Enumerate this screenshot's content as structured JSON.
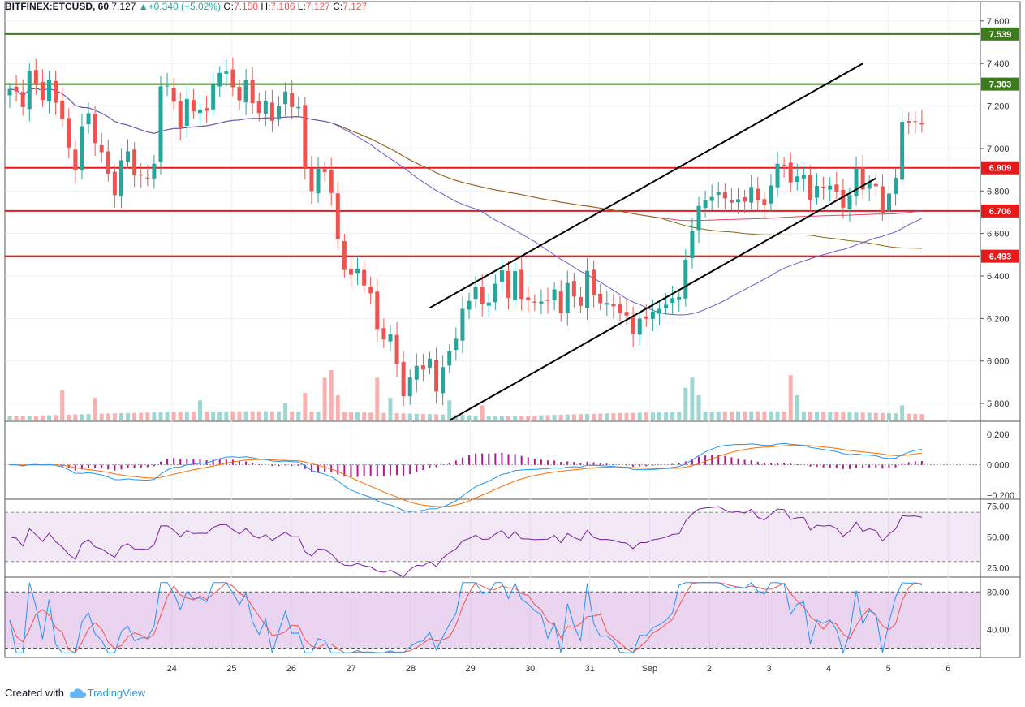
{
  "header": {
    "symbol": "BITFINEX:ETCUSD, 60",
    "last": "7.127",
    "change_arrow": "▲",
    "change": "+0.340 (+5.02%)",
    "o_label": "O:",
    "o": "7.150",
    "h_label": "H:",
    "h": "7.186",
    "l_label": "L:",
    "l": "7.127",
    "c_label": "C:",
    "c": "7.127"
  },
  "footer": {
    "created_with": "Created with",
    "brand": "TradingView"
  },
  "colors": {
    "up": "#26a69a",
    "down": "#ef5350",
    "support": "#e8191b",
    "resistance": "#3c7a1c",
    "ma_fast": "#6a5acd",
    "ma_mid": "#8b6914",
    "ma_slow": "#e8426e",
    "macd": "#2196f3",
    "signal": "#ff6d00",
    "hist": "#b2178e",
    "rsi": "#7b1fa2",
    "stoch_k": "#2196f3",
    "stoch_d": "#ef5350"
  },
  "chart_data": {
    "type": "candlestick",
    "y_ticks": [
      "7.600",
      "7.400",
      "7.200",
      "7.000",
      "6.800",
      "6.600",
      "6.400",
      "6.200",
      "6.000",
      "5.800"
    ],
    "ylim": [
      5.72,
      7.63
    ],
    "x_ticks": [
      "24",
      "25",
      "26",
      "27",
      "28",
      "29",
      "30",
      "31",
      "Sep",
      "2",
      "3",
      "4",
      "5",
      "6"
    ],
    "x_tick_index": [
      24.7,
      33.8,
      42.9,
      52.0,
      61.1,
      70.2,
      79.3,
      88.4,
      97.5,
      106.6,
      115.7,
      124.8,
      133.9,
      143.0
    ],
    "price_levels": [
      {
        "label": "7.539",
        "value": 7.539,
        "kind": "resistance"
      },
      {
        "label": "7.303",
        "value": 7.303,
        "kind": "resistance"
      },
      {
        "label": "6.909",
        "value": 6.909,
        "kind": "support"
      },
      {
        "label": "6.706",
        "value": 6.706,
        "kind": "support"
      },
      {
        "label": "6.493",
        "value": 6.493,
        "kind": "support"
      }
    ],
    "channel_lines": [
      {
        "from": [
          64,
          6.25
        ],
        "to": [
          130,
          7.4
        ]
      },
      {
        "from": [
          67,
          5.72
        ],
        "to": [
          132,
          6.86
        ]
      }
    ],
    "close_anchors": [
      [
        0,
        7.28
      ],
      [
        2,
        7.22
      ],
      [
        3,
        7.35
      ],
      [
        5,
        7.25
      ],
      [
        6,
        7.3
      ],
      [
        8,
        7.15
      ],
      [
        9,
        6.98
      ],
      [
        10,
        6.92
      ],
      [
        11,
        7.1
      ],
      [
        12,
        7.15
      ],
      [
        13,
        7.05
      ],
      [
        15,
        6.88
      ],
      [
        16,
        6.8
      ],
      [
        17,
        6.92
      ],
      [
        18,
        7.0
      ],
      [
        19,
        6.88
      ],
      [
        20,
        6.85
      ],
      [
        22,
        6.92
      ],
      [
        23,
        7.28
      ],
      [
        24,
        7.32
      ],
      [
        25,
        7.2
      ],
      [
        26,
        7.1
      ],
      [
        27,
        7.25
      ],
      [
        28,
        7.15
      ],
      [
        29,
        7.2
      ],
      [
        30,
        7.18
      ],
      [
        31,
        7.28
      ],
      [
        32,
        7.38
      ],
      [
        33,
        7.35
      ],
      [
        34,
        7.28
      ],
      [
        35,
        7.25
      ],
      [
        36,
        7.3
      ],
      [
        37,
        7.22
      ],
      [
        38,
        7.18
      ],
      [
        39,
        7.2
      ],
      [
        40,
        7.15
      ],
      [
        41,
        7.2
      ],
      [
        42,
        7.25
      ],
      [
        43,
        7.22
      ],
      [
        44,
        7.18
      ],
      [
        45,
        6.9
      ],
      [
        46,
        6.82
      ],
      [
        47,
        6.88
      ],
      [
        48,
        6.9
      ],
      [
        49,
        6.8
      ],
      [
        49.5,
        6.62
      ],
      [
        50,
        6.55
      ],
      [
        51,
        6.45
      ],
      [
        52,
        6.4
      ],
      [
        53,
        6.42
      ],
      [
        54,
        6.38
      ],
      [
        55,
        6.3
      ],
      [
        56,
        6.15
      ],
      [
        57,
        6.12
      ],
      [
        58,
        6.1
      ],
      [
        59,
        6.0
      ],
      [
        60,
        5.84
      ],
      [
        61,
        5.9
      ],
      [
        62,
        6.0
      ],
      [
        63,
        5.95
      ],
      [
        64,
        6.0
      ],
      [
        65,
        5.88
      ],
      [
        66,
        5.95
      ],
      [
        67,
        6.05
      ],
      [
        68,
        6.12
      ],
      [
        69,
        6.22
      ],
      [
        70,
        6.3
      ],
      [
        71,
        6.35
      ],
      [
        72,
        6.25
      ],
      [
        73,
        6.3
      ],
      [
        74,
        6.35
      ],
      [
        75,
        6.42
      ],
      [
        76,
        6.32
      ],
      [
        77,
        6.4
      ],
      [
        78,
        6.3
      ],
      [
        79,
        6.3
      ],
      [
        80,
        6.25
      ],
      [
        81,
        6.3
      ],
      [
        82,
        6.28
      ],
      [
        83,
        6.32
      ],
      [
        84,
        6.25
      ],
      [
        85,
        6.35
      ],
      [
        86,
        6.3
      ],
      [
        87,
        6.28
      ],
      [
        88,
        6.4
      ],
      [
        89,
        6.32
      ],
      [
        90,
        6.28
      ],
      [
        91,
        6.25
      ],
      [
        92,
        6.28
      ],
      [
        93,
        6.22
      ],
      [
        94,
        6.2
      ],
      [
        95,
        6.15
      ],
      [
        96,
        6.18
      ],
      [
        97,
        6.2
      ],
      [
        98,
        6.25
      ],
      [
        99,
        6.22
      ],
      [
        100,
        6.28
      ],
      [
        101,
        6.3
      ],
      [
        102,
        6.28
      ],
      [
        103,
        6.5
      ],
      [
        104,
        6.6
      ],
      [
        105,
        6.72
      ],
      [
        106,
        6.78
      ],
      [
        107,
        6.75
      ],
      [
        108,
        6.8
      ],
      [
        109,
        6.78
      ],
      [
        110,
        6.72
      ],
      [
        111,
        6.78
      ],
      [
        112,
        6.75
      ],
      [
        113,
        6.8
      ],
      [
        114,
        6.78
      ],
      [
        115,
        6.72
      ],
      [
        116,
        6.82
      ],
      [
        117,
        6.95
      ],
      [
        118,
        6.9
      ],
      [
        119,
        6.85
      ],
      [
        120,
        6.88
      ],
      [
        121,
        6.85
      ],
      [
        122,
        6.78
      ],
      [
        123,
        6.82
      ],
      [
        124,
        6.8
      ],
      [
        125,
        6.85
      ],
      [
        126,
        6.78
      ],
      [
        127,
        6.72
      ],
      [
        128,
        6.8
      ],
      [
        129,
        6.88
      ],
      [
        130,
        6.82
      ],
      [
        131,
        6.85
      ],
      [
        132,
        6.8
      ],
      [
        133,
        6.72
      ],
      [
        134,
        6.78
      ],
      [
        135,
        6.85
      ],
      [
        136,
        7.15
      ],
      [
        137,
        7.1
      ],
      [
        138,
        7.13
      ]
    ],
    "volume_spikes": [
      [
        8,
        0.6
      ],
      [
        13,
        0.45
      ],
      [
        29,
        0.4
      ],
      [
        42,
        0.35
      ],
      [
        45,
        0.55
      ],
      [
        48,
        0.85
      ],
      [
        49,
        1.0
      ],
      [
        50,
        0.5
      ],
      [
        56,
        0.85
      ],
      [
        58,
        0.45
      ],
      [
        67,
        0.4
      ],
      [
        72,
        0.3
      ],
      [
        103,
        0.65
      ],
      [
        104,
        0.85
      ],
      [
        105,
        0.5
      ],
      [
        119,
        0.9
      ],
      [
        120,
        0.5
      ],
      [
        136,
        0.3
      ]
    ],
    "macd": {
      "ylim": [
        -0.22,
        0.28
      ],
      "ticks": [
        "0.200",
        "0.000",
        "−0.200"
      ]
    },
    "rsi": {
      "ylim": [
        18,
        80
      ],
      "band": [
        30,
        70
      ],
      "ticks": [
        "75.00",
        "50.00",
        "25.00"
      ]
    },
    "stoch": {
      "ylim": [
        10,
        95
      ],
      "band": [
        20,
        80
      ],
      "ticks": [
        "80.00",
        "40.00"
      ]
    }
  }
}
